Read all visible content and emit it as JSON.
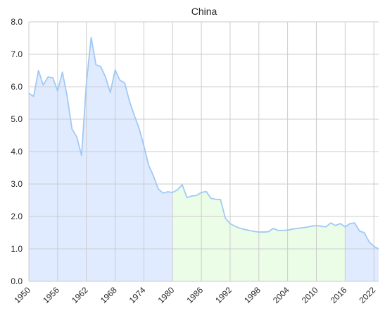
{
  "chart_data": {
    "type": "area",
    "title": "China",
    "xlabel": "",
    "ylabel": "",
    "xlim": [
      1950,
      2023
    ],
    "ylim": [
      0,
      8
    ],
    "grid": true,
    "x_ticks": [
      1950,
      1956,
      1962,
      1968,
      1974,
      1980,
      1986,
      1992,
      1998,
      2004,
      2010,
      2016,
      2022
    ],
    "y_ticks": [
      "0.0",
      "1.0",
      "2.0",
      "3.0",
      "4.0",
      "5.0",
      "6.0",
      "7.0",
      "8.0"
    ],
    "line_color": "#a1c9f4",
    "regions": [
      {
        "from": 1950,
        "to": 1980,
        "color": "#e0ebff"
      },
      {
        "from": 1980,
        "to": 2016,
        "color": "#ebfde7"
      },
      {
        "from": 2016,
        "to": 2023,
        "color": "#e0ebff"
      }
    ],
    "x": [
      1950,
      1951,
      1952,
      1953,
      1954,
      1955,
      1956,
      1957,
      1958,
      1959,
      1960,
      1961,
      1962,
      1963,
      1964,
      1965,
      1966,
      1967,
      1968,
      1969,
      1970,
      1971,
      1972,
      1973,
      1974,
      1975,
      1976,
      1977,
      1978,
      1979,
      1980,
      1981,
      1982,
      1983,
      1984,
      1985,
      1986,
      1987,
      1988,
      1989,
      1990,
      1991,
      1992,
      1993,
      1994,
      1995,
      1996,
      1997,
      1998,
      1999,
      2000,
      2001,
      2002,
      2003,
      2004,
      2005,
      2006,
      2007,
      2008,
      2009,
      2010,
      2011,
      2012,
      2013,
      2014,
      2015,
      2016,
      2017,
      2018,
      2019,
      2020,
      2021,
      2022,
      2023
    ],
    "values": [
      5.8,
      5.7,
      6.5,
      6.05,
      6.3,
      6.28,
      5.87,
      6.45,
      5.7,
      4.7,
      4.45,
      3.88,
      6.1,
      7.52,
      6.68,
      6.62,
      6.3,
      5.82,
      6.52,
      6.2,
      6.12,
      5.55,
      5.12,
      4.72,
      4.18,
      3.58,
      3.25,
      2.85,
      2.72,
      2.76,
      2.74,
      2.82,
      2.98,
      2.58,
      2.63,
      2.65,
      2.74,
      2.77,
      2.56,
      2.53,
      2.52,
      1.95,
      1.78,
      1.7,
      1.64,
      1.6,
      1.57,
      1.54,
      1.52,
      1.52,
      1.53,
      1.63,
      1.57,
      1.57,
      1.58,
      1.61,
      1.63,
      1.65,
      1.67,
      1.7,
      1.72,
      1.7,
      1.68,
      1.8,
      1.72,
      1.78,
      1.68,
      1.78,
      1.8,
      1.55,
      1.5,
      1.22,
      1.08,
      1.0
    ]
  }
}
